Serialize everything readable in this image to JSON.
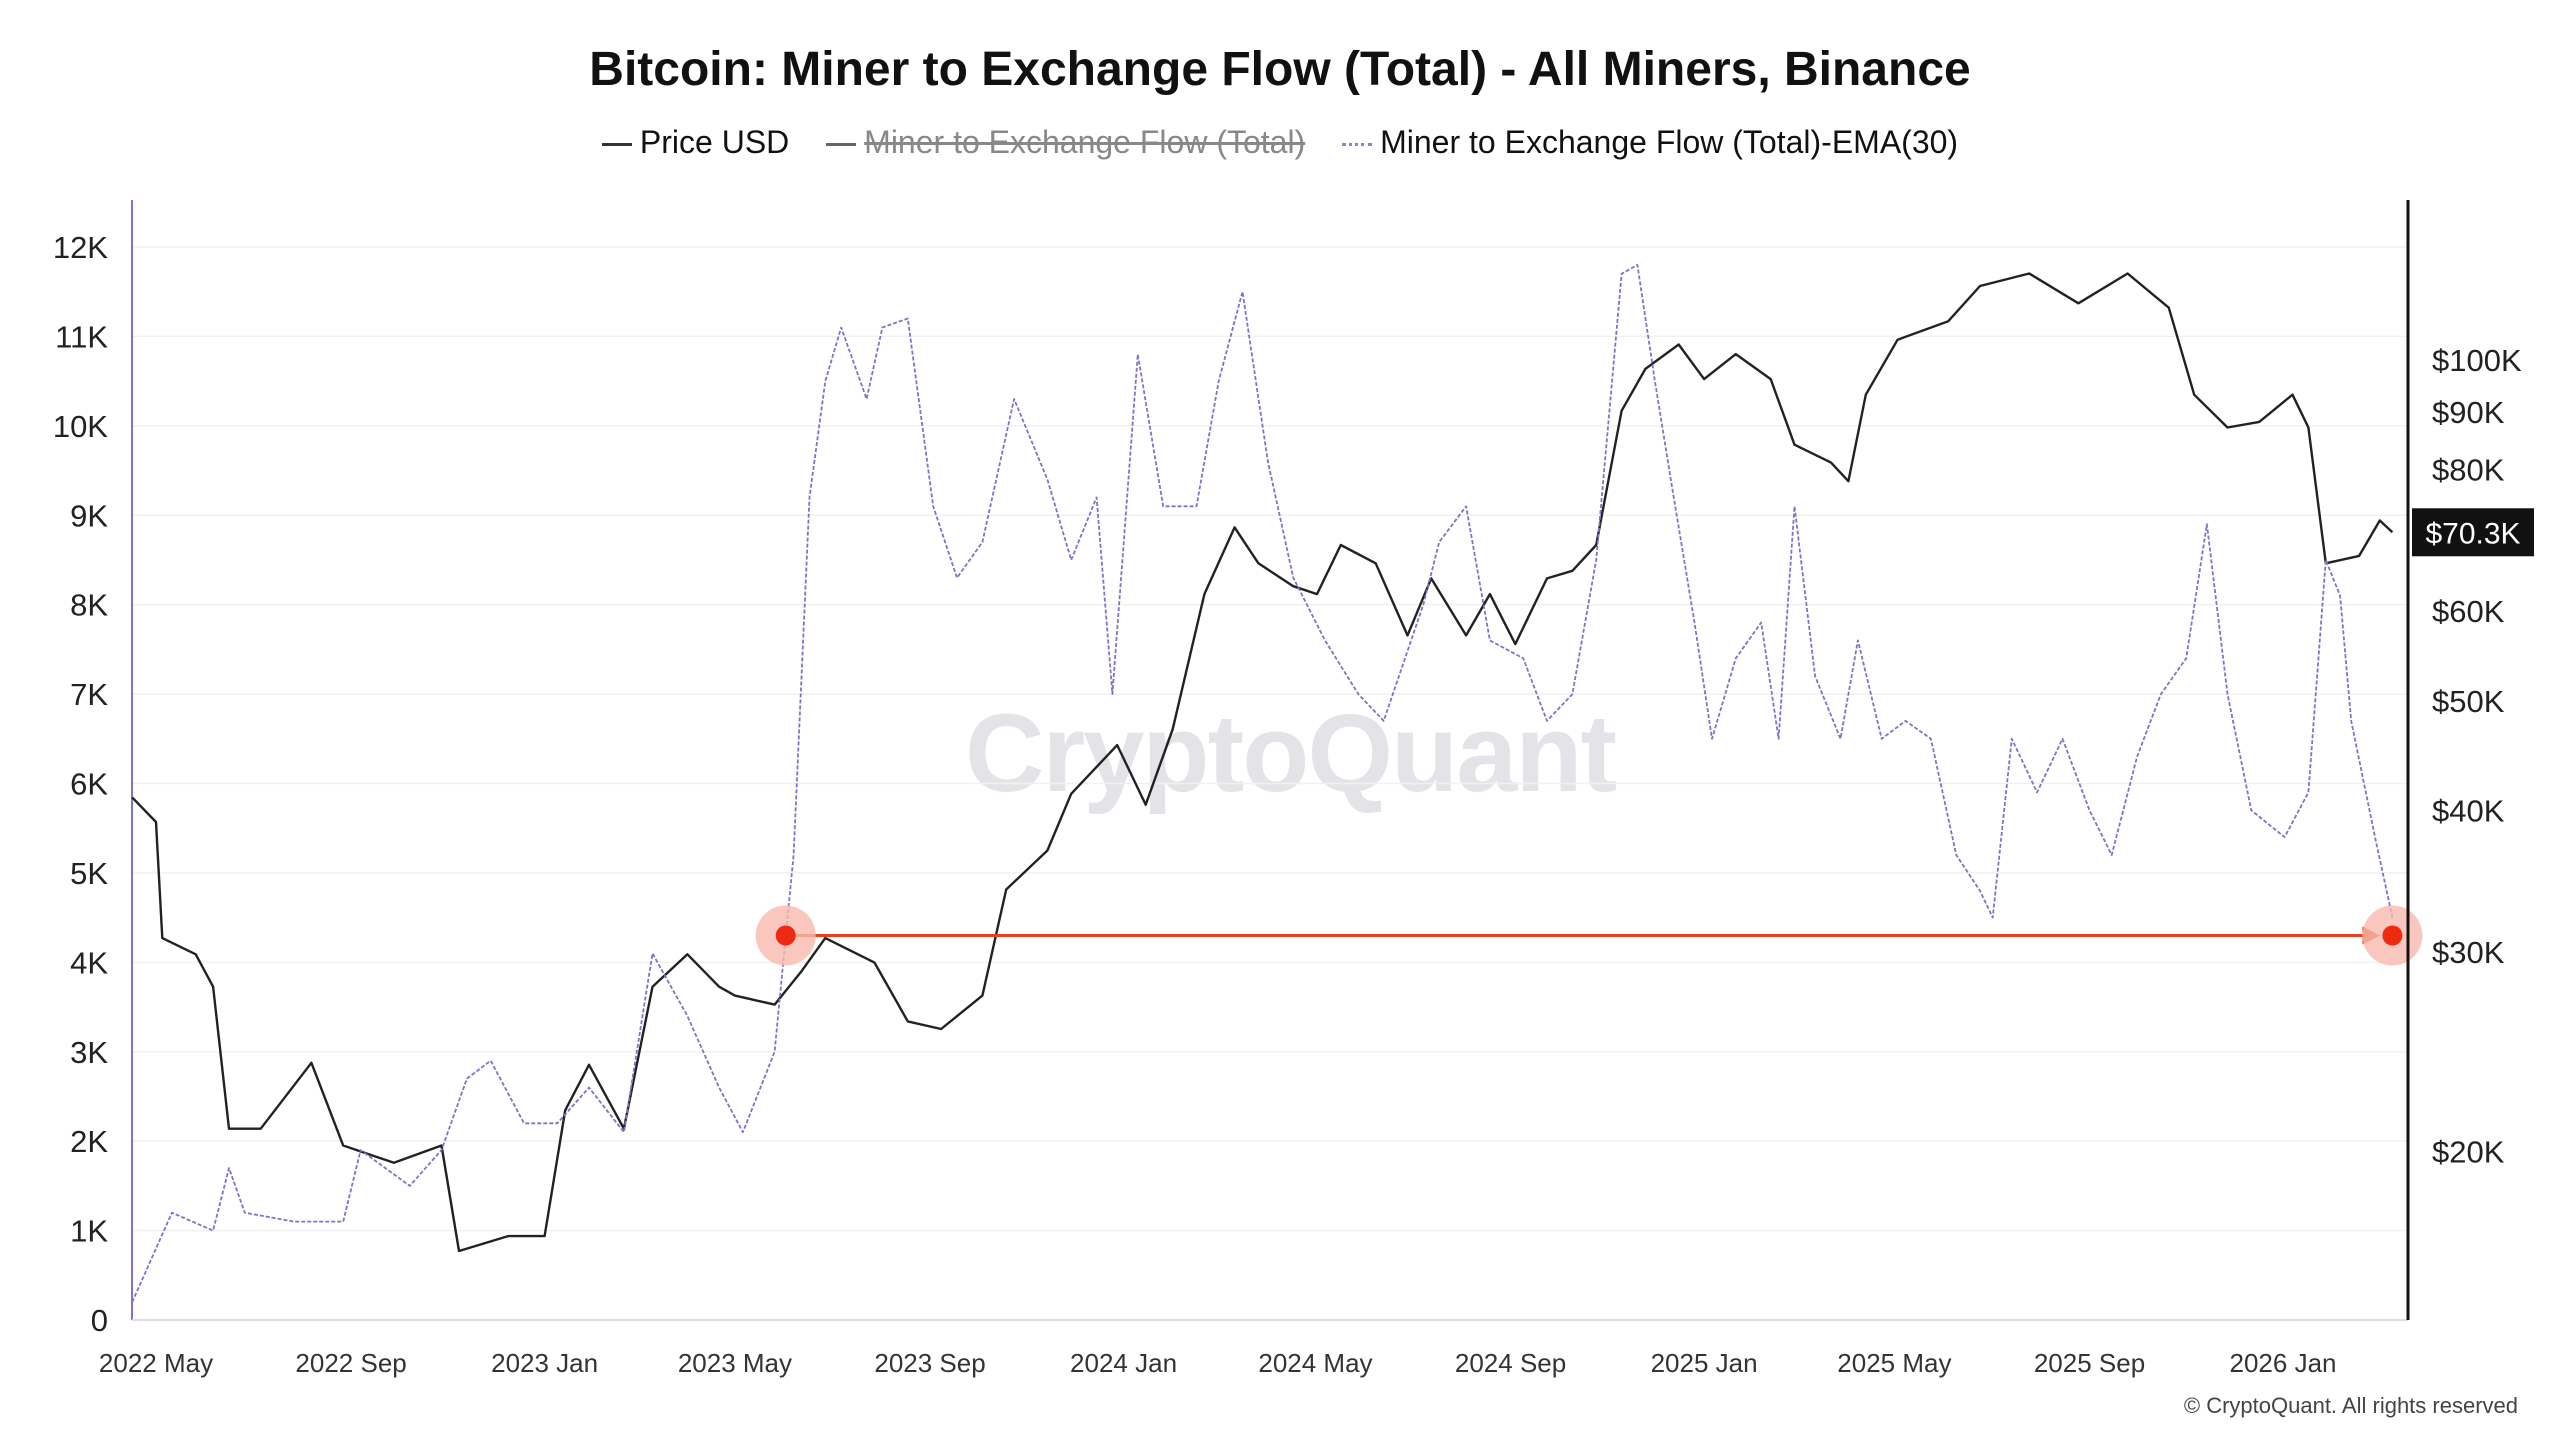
{
  "chart_data": {
    "type": "line",
    "title": "Bitcoin: Miner to Exchange Flow (Total) - All Miners, Binance",
    "legend": [
      {
        "name": "Price USD",
        "color": "#222222",
        "active": true
      },
      {
        "name": "Miner to Exchange Flow (Total)",
        "color": "#555555",
        "active": false
      },
      {
        "name": "Miner to Exchange Flow (Total)-EMA(30)",
        "color": "#7b74c9",
        "active": true
      }
    ],
    "x_ticks": [
      "2022 May",
      "2022 Sep",
      "2023 Jan",
      "2023 May",
      "2023 Sep",
      "2024 Jan",
      "2024 May",
      "2024 Sep",
      "2025 Jan",
      "2025 May",
      "2025 Sep",
      "2026 Jan"
    ],
    "x_tick_dates": [
      "2022-05-01",
      "2022-09-01",
      "2023-01-01",
      "2023-05-01",
      "2023-09-01",
      "2024-01-01",
      "2024-05-01",
      "2024-09-01",
      "2025-01-01",
      "2025-05-01",
      "2025-09-01",
      "2026-01-01"
    ],
    "left_axis": {
      "ticks": [
        "0",
        "1K",
        "2K",
        "3K",
        "4K",
        "5K",
        "6K",
        "7K",
        "8K",
        "9K",
        "10K",
        "11K",
        "12K"
      ],
      "tick_values": [
        0,
        1000,
        2000,
        3000,
        4000,
        5000,
        6000,
        7000,
        8000,
        9000,
        10000,
        11000,
        12000
      ],
      "range": [
        0,
        12000
      ]
    },
    "right_axis": {
      "scale": "log",
      "ticks": [
        "$20K",
        "$30K",
        "$40K",
        "$50K",
        "$60K",
        "$80K",
        "$90K",
        "$100K"
      ],
      "tick_values": [
        20000,
        30000,
        40000,
        50000,
        60000,
        80000,
        90000,
        100000
      ],
      "current_label": "$70.3K",
      "current_value": 70300
    },
    "grid": true,
    "legend_placement": "top",
    "series": [
      {
        "name": "Price USD",
        "axis": "right",
        "color": "#222222",
        "points": [
          [
            "2022-04-16",
            41000
          ],
          [
            "2022-05-01",
            39000
          ],
          [
            "2022-05-05",
            30800
          ],
          [
            "2022-05-26",
            29800
          ],
          [
            "2022-06-06",
            27900
          ],
          [
            "2022-06-16",
            20900
          ],
          [
            "2022-07-06",
            20900
          ],
          [
            "2022-08-07",
            23900
          ],
          [
            "2022-08-27",
            20200
          ],
          [
            "2022-09-28",
            19500
          ],
          [
            "2022-10-28",
            20200
          ],
          [
            "2022-11-08",
            16300
          ],
          [
            "2022-12-09",
            16800
          ],
          [
            "2023-01-01",
            16800
          ],
          [
            "2023-01-14",
            21700
          ],
          [
            "2023-01-29",
            23800
          ],
          [
            "2023-02-20",
            20900
          ],
          [
            "2023-03-10",
            27900
          ],
          [
            "2023-04-01",
            29800
          ],
          [
            "2023-04-21",
            27900
          ],
          [
            "2023-05-01",
            27400
          ],
          [
            "2023-05-26",
            26900
          ],
          [
            "2023-06-12",
            28800
          ],
          [
            "2023-06-27",
            30800
          ],
          [
            "2023-07-28",
            29300
          ],
          [
            "2023-08-18",
            26000
          ],
          [
            "2023-09-08",
            25600
          ],
          [
            "2023-10-04",
            27400
          ],
          [
            "2023-10-19",
            34000
          ],
          [
            "2023-11-14",
            36800
          ],
          [
            "2023-11-29",
            41300
          ],
          [
            "2023-12-28",
            45600
          ],
          [
            "2024-01-15",
            40400
          ],
          [
            "2024-02-01",
            47100
          ],
          [
            "2024-02-21",
            62000
          ],
          [
            "2024-03-11",
            71000
          ],
          [
            "2024-03-26",
            66000
          ],
          [
            "2024-04-17",
            63000
          ],
          [
            "2024-05-02",
            62000
          ],
          [
            "2024-05-17",
            68500
          ],
          [
            "2024-06-08",
            66000
          ],
          [
            "2024-06-28",
            57000
          ],
          [
            "2024-07-13",
            64000
          ],
          [
            "2024-08-04",
            57000
          ],
          [
            "2024-08-19",
            62000
          ],
          [
            "2024-09-04",
            56000
          ],
          [
            "2024-09-24",
            64000
          ],
          [
            "2024-10-10",
            65000
          ],
          [
            "2024-10-25",
            68500
          ],
          [
            "2024-11-10",
            90000
          ],
          [
            "2024-11-25",
            98000
          ],
          [
            "2024-12-16",
            103000
          ],
          [
            "2025-01-01",
            96000
          ],
          [
            "2025-01-21",
            101000
          ],
          [
            "2025-02-12",
            96000
          ],
          [
            "2025-02-27",
            84000
          ],
          [
            "2025-03-22",
            81000
          ],
          [
            "2025-04-02",
            78000
          ],
          [
            "2025-04-13",
            93000
          ],
          [
            "2025-05-03",
            104000
          ],
          [
            "2025-06-04",
            108000
          ],
          [
            "2025-06-24",
            116000
          ],
          [
            "2025-07-25",
            119000
          ],
          [
            "2025-08-25",
            112000
          ],
          [
            "2025-09-25",
            119000
          ],
          [
            "2025-10-21",
            111000
          ],
          [
            "2025-11-06",
            93000
          ],
          [
            "2025-11-27",
            87000
          ],
          [
            "2025-12-17",
            88000
          ],
          [
            "2026-01-07",
            93000
          ],
          [
            "2026-01-17",
            87000
          ],
          [
            "2026-01-28",
            66000
          ],
          [
            "2026-02-18",
            67000
          ],
          [
            "2026-03-03",
            72000
          ],
          [
            "2026-03-11",
            70300
          ]
        ]
      },
      {
        "name": "Miner to Exchange Flow (Total)-EMA(30)",
        "axis": "left",
        "color": "#7b74c9",
        "points": [
          [
            "2022-04-16",
            200
          ],
          [
            "2022-04-26",
            600
          ],
          [
            "2022-05-11",
            1200
          ],
          [
            "2022-06-06",
            1000
          ],
          [
            "2022-06-16",
            1700
          ],
          [
            "2022-06-26",
            1200
          ],
          [
            "2022-07-27",
            1100
          ],
          [
            "2022-08-27",
            1100
          ],
          [
            "2022-09-07",
            1900
          ],
          [
            "2022-10-08",
            1500
          ],
          [
            "2022-10-28",
            1900
          ],
          [
            "2022-11-13",
            2700
          ],
          [
            "2022-11-28",
            2900
          ],
          [
            "2022-12-19",
            2200
          ],
          [
            "2023-01-09",
            2200
          ],
          [
            "2023-01-29",
            2600
          ],
          [
            "2023-02-20",
            2100
          ],
          [
            "2023-03-10",
            4100
          ],
          [
            "2023-04-01",
            3400
          ],
          [
            "2023-04-21",
            2600
          ],
          [
            "2023-05-06",
            2100
          ],
          [
            "2023-05-26",
            3000
          ],
          [
            "2023-06-07",
            5200
          ],
          [
            "2023-06-17",
            9200
          ],
          [
            "2023-06-27",
            10500
          ],
          [
            "2023-07-07",
            11100
          ],
          [
            "2023-07-23",
            10300
          ],
          [
            "2023-08-02",
            11100
          ],
          [
            "2023-08-18",
            11200
          ],
          [
            "2023-09-03",
            9100
          ],
          [
            "2023-09-18",
            8300
          ],
          [
            "2023-10-04",
            8700
          ],
          [
            "2023-10-24",
            10300
          ],
          [
            "2023-11-14",
            9400
          ],
          [
            "2023-11-29",
            8500
          ],
          [
            "2023-12-15",
            9200
          ],
          [
            "2023-12-25",
            7000
          ],
          [
            "2024-01-10",
            10800
          ],
          [
            "2024-01-26",
            9100
          ],
          [
            "2024-02-16",
            9100
          ],
          [
            "2024-03-01",
            10500
          ],
          [
            "2024-03-16",
            11500
          ],
          [
            "2024-04-01",
            9600
          ],
          [
            "2024-04-17",
            8300
          ],
          [
            "2024-05-07",
            7600
          ],
          [
            "2024-05-28",
            7000
          ],
          [
            "2024-06-13",
            6700
          ],
          [
            "2024-07-08",
            8000
          ],
          [
            "2024-07-18",
            8700
          ],
          [
            "2024-08-04",
            9100
          ],
          [
            "2024-08-19",
            7600
          ],
          [
            "2024-09-09",
            7400
          ],
          [
            "2024-09-24",
            6700
          ],
          [
            "2024-10-10",
            7000
          ],
          [
            "2024-10-25",
            8500
          ],
          [
            "2024-11-10",
            11700
          ],
          [
            "2024-11-20",
            11800
          ],
          [
            "2024-12-01",
            10500
          ],
          [
            "2024-12-11",
            9400
          ],
          [
            "2024-12-26",
            7800
          ],
          [
            "2025-01-06",
            6500
          ],
          [
            "2025-01-21",
            7400
          ],
          [
            "2025-02-06",
            7800
          ],
          [
            "2025-02-17",
            6500
          ],
          [
            "2025-02-27",
            9100
          ],
          [
            "2025-03-12",
            7200
          ],
          [
            "2025-03-28",
            6500
          ],
          [
            "2025-04-08",
            7600
          ],
          [
            "2025-04-23",
            6500
          ],
          [
            "2025-05-08",
            6700
          ],
          [
            "2025-05-24",
            6500
          ],
          [
            "2025-06-09",
            5200
          ],
          [
            "2025-06-24",
            4800
          ],
          [
            "2025-07-02",
            4500
          ],
          [
            "2025-07-14",
            6500
          ],
          [
            "2025-07-30",
            5900
          ],
          [
            "2025-08-15",
            6500
          ],
          [
            "2025-09-01",
            5700
          ],
          [
            "2025-09-15",
            5200
          ],
          [
            "2025-10-01",
            6300
          ],
          [
            "2025-10-16",
            7000
          ],
          [
            "2025-11-01",
            7400
          ],
          [
            "2025-11-14",
            8900
          ],
          [
            "2025-11-27",
            7000
          ],
          [
            "2025-12-12",
            5700
          ],
          [
            "2026-01-02",
            5400
          ],
          [
            "2026-01-17",
            5900
          ],
          [
            "2026-01-28",
            8500
          ],
          [
            "2026-02-06",
            8100
          ],
          [
            "2026-02-13",
            6700
          ],
          [
            "2026-02-28",
            5400
          ],
          [
            "2026-03-11",
            4500
          ]
        ]
      }
    ],
    "annotation": {
      "type": "horizontal-arrow",
      "from_date": "2023-06-02",
      "to_date": "2026-03-11",
      "value": 4300,
      "color": "#e8401c"
    }
  },
  "watermark": "CryptoQuant",
  "copyright": "© CryptoQuant. All rights reserved"
}
